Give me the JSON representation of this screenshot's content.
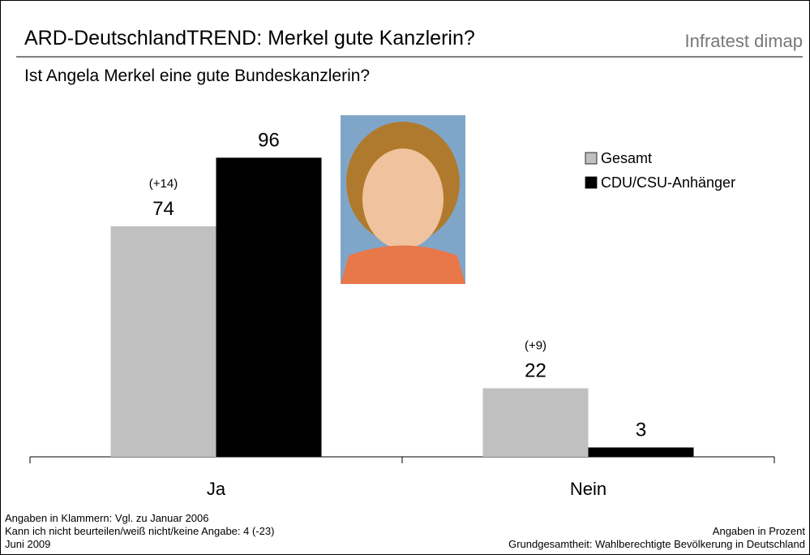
{
  "chart_data": {
    "type": "bar",
    "title": "ARD-DeutschlandTREND: Merkel gute Kanzlerin?",
    "brand": "Infratest dimap",
    "subtitle": "Ist Angela Merkel eine gute Bundeskanzlerin?",
    "categories": [
      "Ja",
      "Nein"
    ],
    "series": [
      {
        "name": "Gesamt",
        "color": "#c0c0c0",
        "values": [
          74,
          22
        ],
        "change_labels": [
          "(+14)",
          "(+9)"
        ]
      },
      {
        "name": "CDU/CSU-Anhänger",
        "color": "#000000",
        "values": [
          96,
          3
        ]
      }
    ],
    "notes_left": [
      "Angaben in Klammern: Vgl. zu Januar 2006",
      "Kann ich nicht beurteilen/weiß nicht/keine Angabe: 4 (-23)",
      "Juni 2009"
    ],
    "notes_right": [
      "Angaben in Prozent",
      "Grundgesamtheit: Wahlberechtigte Bevölkerung in Deutschland"
    ]
  }
}
